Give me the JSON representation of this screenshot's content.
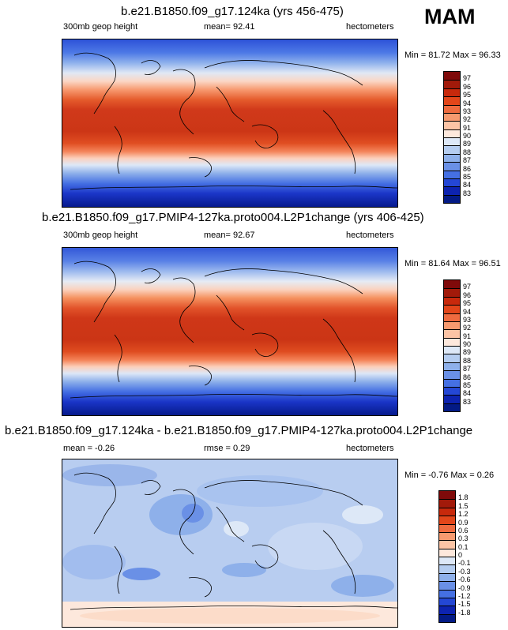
{
  "season": "MAM",
  "panels": [
    {
      "title": "b.e21.B1850.f09_g17.124ka (yrs 456-475)",
      "left_label": "300mb geop height",
      "center_label": "mean=  92.41",
      "right_label": "hectometers",
      "minmax": "Min = 81.72 Max = 96.33",
      "kind": "abs"
    },
    {
      "title": "b.e21.B1850.f09_g17.PMIP4-127ka.proto004.L2P1change (yrs 406-425)",
      "left_label": "300mb geop height",
      "center_label": "mean=  92.67",
      "right_label": "hectometers",
      "minmax": "Min = 81.64 Max = 96.51",
      "kind": "abs"
    },
    {
      "title": "b.e21.B1850.f09_g17.124ka - b.e21.B1850.f09_g17.PMIP4-127ka.proto004.L2P1change",
      "left_label": "mean =  -0.26",
      "center_label": "rmse =   0.29",
      "right_label": "hectometers",
      "minmax": "Min = -0.76 Max =   0.26",
      "kind": "diff"
    }
  ],
  "abs_legend": {
    "labels": [
      "97",
      "96",
      "95",
      "94",
      "93",
      "92",
      "91",
      "90",
      "89",
      "88",
      "87",
      "86",
      "85",
      "84",
      "83"
    ],
    "colors": [
      "#7f0a0a",
      "#a21a0a",
      "#c8290c",
      "#e3461a",
      "#ef6b3f",
      "#f79a6f",
      "#fcc4a5",
      "#fde8dc",
      "#dde8f7",
      "#b5cdf0",
      "#8eb0ea",
      "#6a90e6",
      "#4570e3",
      "#2447d5",
      "#0d23b0",
      "#031a85"
    ]
  },
  "diff_legend": {
    "labels": [
      "1.8",
      "1.5",
      "1.2",
      "0.9",
      "0.6",
      "0.3",
      "0.1",
      "0",
      "-0.1",
      "-0.3",
      "-0.6",
      "-0.9",
      "-1.2",
      "-1.5",
      "-1.8"
    ],
    "colors": [
      "#7f0a0a",
      "#a21a0a",
      "#c8290c",
      "#e3461a",
      "#ef6b3f",
      "#f79a6f",
      "#fcc4a5",
      "#fde8dc",
      "#dde8f7",
      "#b5cdf0",
      "#8eb0ea",
      "#6a90e6",
      "#4570e3",
      "#2447d5",
      "#0d23b0",
      "#031a85"
    ]
  }
}
